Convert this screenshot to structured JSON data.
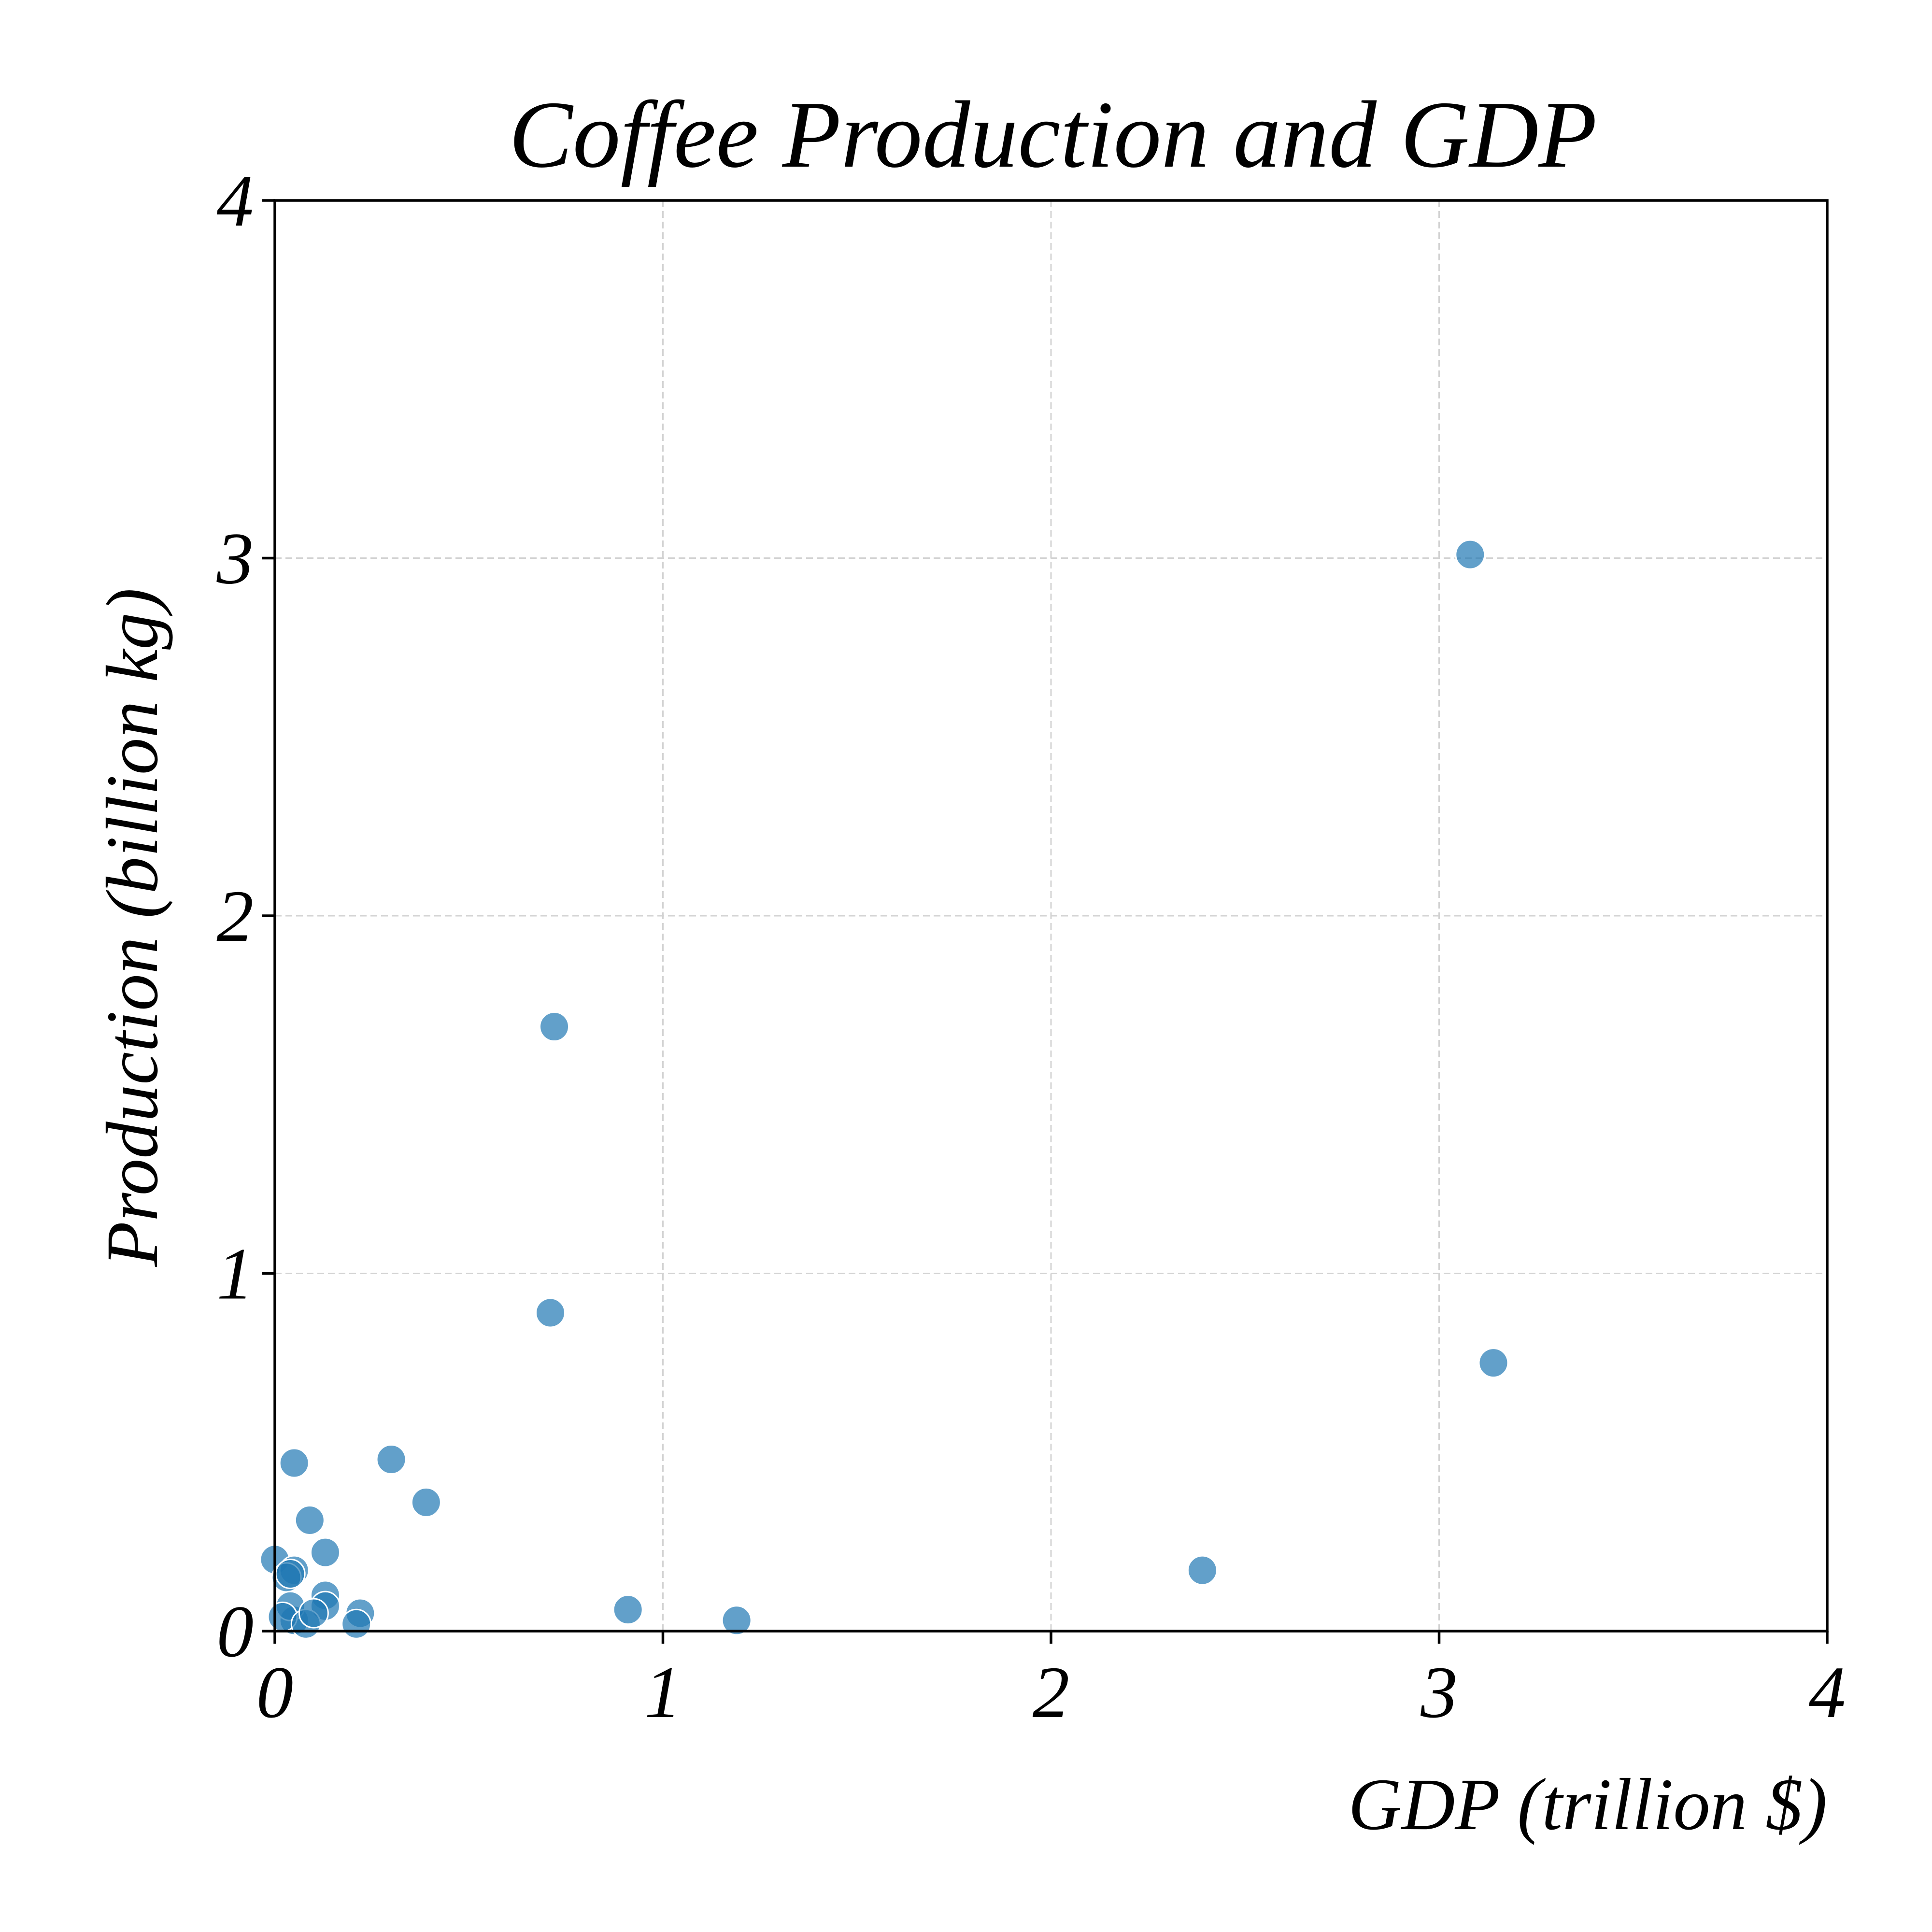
{
  "chart_data": {
    "type": "scatter",
    "title": "Coffee Production and GDP",
    "xlabel": "GDP (trillion $)",
    "ylabel": "Production (billion kg)",
    "xlim": [
      0,
      4
    ],
    "ylim": [
      0,
      4
    ],
    "xticks": [
      0,
      1,
      2,
      3,
      4
    ],
    "yticks": [
      0,
      1,
      2,
      3,
      4
    ],
    "grid": true,
    "color": "#1f77b4",
    "series": [
      {
        "x": [
          3.08,
          3.14,
          0.72,
          0.71,
          2.39,
          0.91,
          1.19,
          0.3,
          0.39,
          0.05,
          0.09,
          0.13,
          0.0,
          0.05,
          0.03,
          0.04,
          0.13,
          0.13,
          0.22,
          0.21,
          0.05,
          0.04,
          0.02,
          0.08,
          0.1
        ],
        "y": [
          3.01,
          0.75,
          1.69,
          0.89,
          0.17,
          0.06,
          0.03,
          0.48,
          0.36,
          0.47,
          0.31,
          0.22,
          0.2,
          0.17,
          0.15,
          0.16,
          0.1,
          0.07,
          0.05,
          0.02,
          0.03,
          0.07,
          0.04,
          0.02,
          0.05
        ]
      }
    ]
  }
}
